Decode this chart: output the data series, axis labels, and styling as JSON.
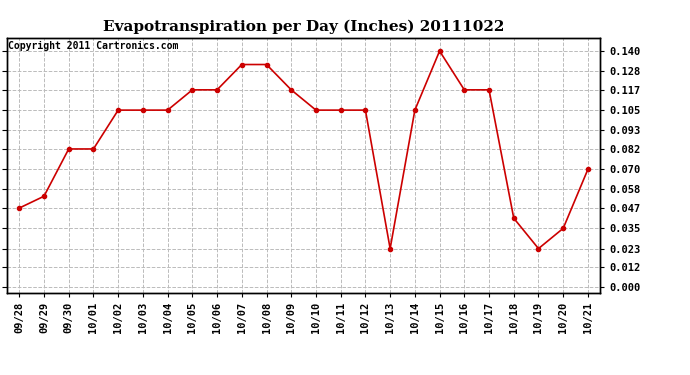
{
  "title": "Evapotranspiration per Day (Inches) 20111022",
  "copyright": "Copyright 2011 Cartronics.com",
  "x_labels": [
    "09/28",
    "09/29",
    "09/30",
    "10/01",
    "10/02",
    "10/03",
    "10/04",
    "10/05",
    "10/06",
    "10/07",
    "10/08",
    "10/09",
    "10/10",
    "10/11",
    "10/12",
    "10/13",
    "10/14",
    "10/15",
    "10/16",
    "10/17",
    "10/18",
    "10/19",
    "10/20",
    "10/21"
  ],
  "y_values": [
    0.047,
    0.054,
    0.082,
    0.082,
    0.105,
    0.105,
    0.105,
    0.117,
    0.117,
    0.132,
    0.132,
    0.117,
    0.105,
    0.105,
    0.105,
    0.023,
    0.105,
    0.14,
    0.117,
    0.117,
    0.041,
    0.023,
    0.035,
    0.07
  ],
  "y_ticks": [
    0.0,
    0.012,
    0.023,
    0.035,
    0.047,
    0.058,
    0.07,
    0.082,
    0.093,
    0.105,
    0.117,
    0.128,
    0.14
  ],
  "line_color": "#cc0000",
  "marker": "o",
  "marker_size": 3,
  "grid_color": "#bbbbbb",
  "background_color": "#ffffff",
  "title_fontsize": 11,
  "copyright_fontsize": 7,
  "tick_fontsize": 7.5,
  "ylim": [
    -0.003,
    0.148
  ]
}
